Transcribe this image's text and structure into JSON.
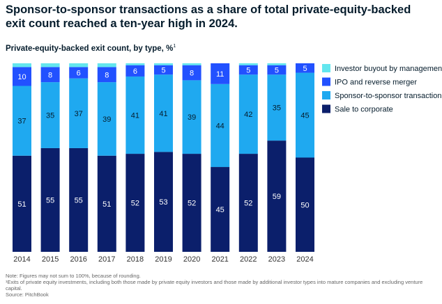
{
  "title": "Sponsor-to-sponsor transactions as a share of total private-equity-backed exit count reached a ten-year high in 2024.",
  "subtitle": "Private-equity-backed exit count, by type,",
  "subtitle_unit": "%",
  "subtitle_sup": "1",
  "notes": {
    "note1": "Note: Figures may not sum to 100%, because of rounding.",
    "note2": "¹Exits of private equity investments, including both those made by private equity investors and those made by additional investor types into mature companies and excluding venture capital.",
    "source": "Source: PitchBook"
  },
  "chart_data": {
    "type": "bar",
    "stacked": true,
    "categories": [
      "2014",
      "2015",
      "2016",
      "2017",
      "2018",
      "2019",
      "2020",
      "2021",
      "2022",
      "2023",
      "2024"
    ],
    "series": [
      {
        "name": "Sale to corporate",
        "color": "#0b1f6b",
        "values": [
          51,
          55,
          55,
          51,
          52,
          53,
          52,
          45,
          52,
          59,
          50
        ]
      },
      {
        "name": "Sponsor-to-sponsor transaction",
        "color": "#1fa9f0",
        "values": [
          37,
          35,
          37,
          39,
          41,
          41,
          39,
          44,
          42,
          35,
          45
        ]
      },
      {
        "name": "IPO and reverse merger",
        "color": "#2251ff",
        "values": [
          10,
          8,
          6,
          8,
          6,
          5,
          8,
          11,
          5,
          5,
          5
        ]
      },
      {
        "name": "Investor buyout by management",
        "color": "#63e6ee",
        "values": [
          2,
          2,
          2,
          2,
          1,
          1,
          1,
          0,
          1,
          1,
          0
        ]
      }
    ],
    "labels_shown_for": [
      "Sale to corporate",
      "Sponsor-to-sponsor transaction",
      "IPO and reverse merger"
    ],
    "legend_order": [
      "Investor buyout by management",
      "IPO and reverse merger",
      "Sponsor-to-sponsor transaction",
      "Sale to corporate"
    ],
    "legend_position": "right",
    "ylim": [
      0,
      100
    ],
    "grid": false
  }
}
